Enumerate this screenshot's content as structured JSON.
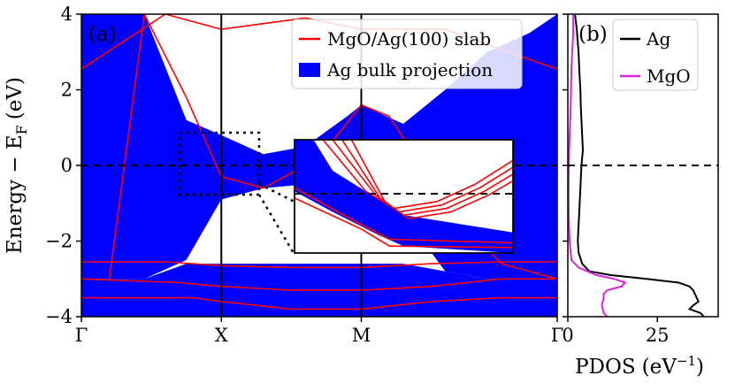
{
  "chart_data": [
    {
      "panel": "(a)",
      "type": "line",
      "title": "",
      "ylabel": "Energy − E",
      "ylabel_sub": "F",
      "ylabel_unit": "(eV)",
      "ylim": [
        -4,
        4
      ],
      "yticks": [
        -4,
        -2,
        0,
        2,
        4
      ],
      "xticks": [
        "Γ",
        "X",
        "M",
        "Γ"
      ],
      "k_path_positions": [
        0,
        1,
        2,
        3.4
      ],
      "legend": {
        "position": "top-right",
        "entries": [
          {
            "label": "MgO/Ag(100) slab",
            "kind": "line",
            "color": "#ff0000"
          },
          {
            "label": "Ag bulk projection",
            "kind": "patch",
            "color": "#0000ff"
          }
        ]
      },
      "fermi_level": 0,
      "series": [
        {
          "name": "Ag bulk projection",
          "kind": "band",
          "color": "#0000ff",
          "band_regions": [
            {
              "x": [
                0,
                0.2,
                0.45,
                0.75,
                1.0,
                1.3,
                1.6,
                1.9,
                2.0,
                2.3,
                2.6,
                2.9,
                3.2,
                3.4
              ],
              "lower": [
                -3.0,
                -3.0,
                -3.0,
                -2.5,
                -0.9,
                -0.6,
                -0.5,
                -0.6,
                -0.8,
                -1.3,
                -2.8,
                -3.0,
                -3.0,
                -3.0
              ],
              "upper": [
                4.0,
                4.0,
                4.0,
                1.2,
                0.8,
                0.3,
                0.5,
                1.3,
                1.6,
                1.1,
                2.0,
                3.0,
                3.5,
                4.0
              ]
            }
          ]
        },
        {
          "name": "MgO/Ag(100) slab",
          "kind": "bands",
          "color": "#ff0000",
          "bands": [
            {
              "x": [
                0,
                0.6,
                1.0,
                1.6,
                2.0,
                2.6,
                3.2,
                3.4
              ],
              "y": [
                2.55,
                4.0,
                3.6,
                3.9,
                3.6,
                3.6,
                2.8,
                2.55
              ]
            },
            {
              "x": [
                0.2,
                0.45,
                0.75,
                1.0,
                1.3,
                1.7,
                2.0,
                2.2,
                2.6,
                3.0,
                3.4
              ],
              "y": [
                -3.0,
                4.0,
                1.8,
                -0.3,
                -0.6,
                0.2,
                1.6,
                1.3,
                -1.0,
                -2.6,
                -3.0
              ]
            },
            {
              "x": [
                0,
                0.6,
                1.0,
                1.5,
                2.0,
                2.5,
                3.0,
                3.4
              ],
              "y": [
                -2.55,
                -2.55,
                -2.65,
                -2.7,
                -2.7,
                -2.6,
                -2.55,
                -2.55
              ]
            },
            {
              "x": [
                0,
                0.7,
                1.0,
                1.5,
                2.0,
                2.5,
                3.0,
                3.4
              ],
              "y": [
                -3.0,
                -3.1,
                -3.2,
                -3.3,
                -3.3,
                -3.2,
                -3.0,
                -3.0
              ]
            },
            {
              "x": [
                0,
                0.8,
                1.0,
                1.5,
                2.0,
                2.5,
                3.0,
                3.4
              ],
              "y": [
                -3.5,
                -3.5,
                -3.6,
                -3.8,
                -3.8,
                -3.6,
                -3.5,
                -3.5
              ]
            }
          ]
        }
      ],
      "inset": {
        "type": "line",
        "zoom_region_x": [
          0.82,
          1.28
        ],
        "zoom_region_ylim": [
          -0.8,
          0.85
        ],
        "fermi_level": 0
      }
    },
    {
      "panel": "(b)",
      "type": "line",
      "xlabel": "PDOS",
      "xlabel_unit": "(eV",
      "xlabel_sup": "−1",
      "xlabel_close": ")",
      "xticks": [
        0,
        25
      ],
      "xlim": [
        0,
        42
      ],
      "ylim": [
        -4,
        4
      ],
      "fermi_level": 0,
      "legend": {
        "position": "top-right",
        "entries": [
          {
            "label": "Ag",
            "color": "#000000"
          },
          {
            "label": "MgO",
            "color": "#dd22dd"
          }
        ]
      },
      "series": [
        {
          "name": "Ag",
          "color": "#000000",
          "y": [
            4.0,
            3.6,
            3.0,
            2.5,
            2.0,
            1.6,
            1.2,
            0.8,
            0.4,
            0.0,
            -0.4,
            -0.8,
            -1.2,
            -1.6,
            -2.0,
            -2.3,
            -2.6,
            -2.8,
            -2.9,
            -3.0,
            -3.1,
            -3.2,
            -3.3,
            -3.4,
            -3.5,
            -3.6,
            -3.7,
            -3.8,
            -3.9,
            -4.0
          ],
          "x": [
            2.0,
            2.5,
            3.0,
            3.2,
            3.5,
            3.6,
            3.8,
            4.0,
            4.2,
            3.8,
            3.6,
            3.4,
            3.2,
            3.0,
            2.8,
            3.0,
            4.0,
            6.0,
            12.0,
            22.0,
            31.0,
            34.0,
            35.0,
            35.5,
            36.0,
            36.5,
            35.0,
            34.0,
            37.0,
            38.0
          ]
        },
        {
          "name": "MgO",
          "color": "#dd22dd",
          "y": [
            4.0,
            3.5,
            3.0,
            2.5,
            2.0,
            1.5,
            1.0,
            0.5,
            0.0,
            -0.5,
            -1.0,
            -1.5,
            -2.0,
            -2.5,
            -2.7,
            -2.9,
            -3.0,
            -3.1,
            -3.2,
            -3.3,
            -3.4,
            -3.5,
            -3.7,
            -3.9,
            -4.0
          ],
          "x": [
            1.5,
            1.5,
            1.2,
            1.0,
            0.9,
            0.8,
            0.6,
            0.4,
            0.3,
            0.2,
            0.2,
            0.3,
            0.5,
            1.0,
            3.0,
            8.0,
            13.0,
            16.0,
            15.0,
            11.0,
            10.0,
            10.0,
            9.5,
            10.0,
            11.0
          ]
        }
      ]
    }
  ]
}
